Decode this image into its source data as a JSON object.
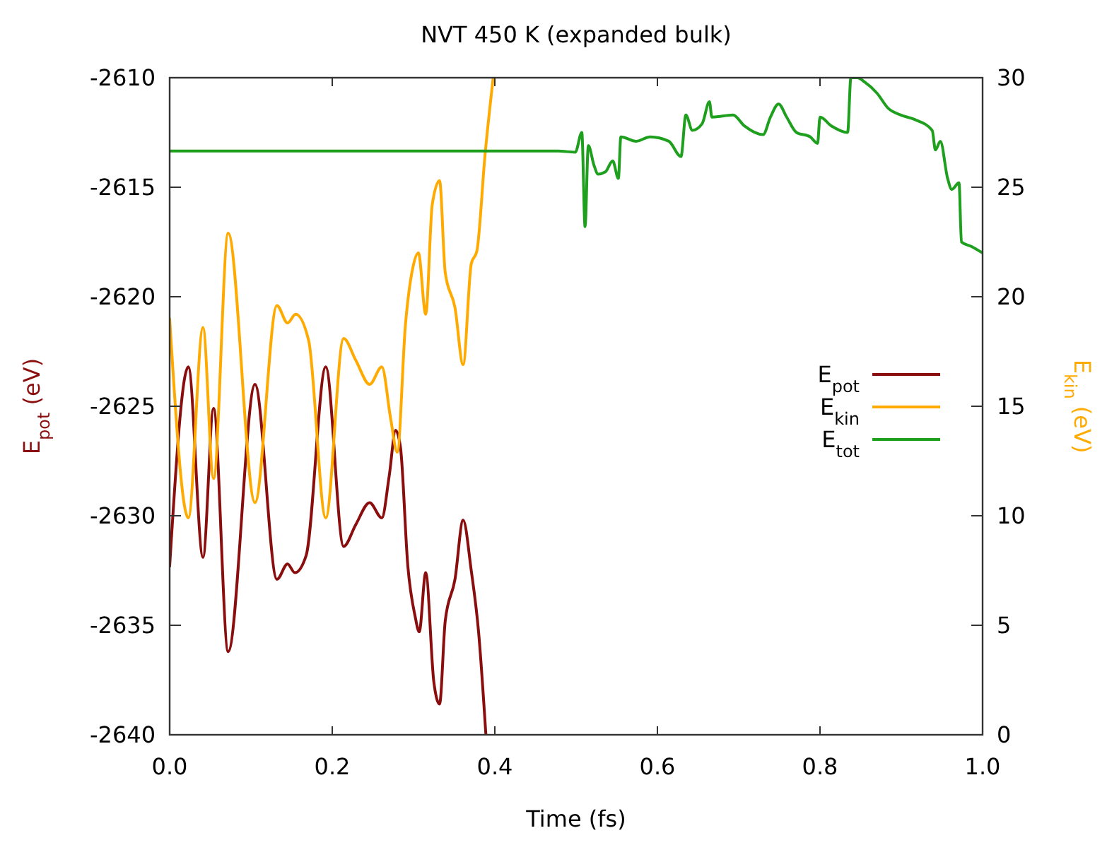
{
  "chart_data": {
    "type": "line",
    "title": "NVT 450 K (expanded bulk)",
    "xlabel": "Time (fs)",
    "ylabel": "E$_{pot}$ (eV)",
    "y2label": "E$_{kin}$ (eV)",
    "xlim": [
      0,
      1
    ],
    "xticks": [
      {
        "value": 0,
        "label": "0.0"
      },
      {
        "value": 0.2,
        "label": "0.2"
      },
      {
        "value": 0.4,
        "label": "0.4"
      },
      {
        "value": 0.6,
        "label": "0.6"
      },
      {
        "value": 0.8,
        "label": "0.8"
      },
      {
        "value": 1,
        "label": "1.0"
      }
    ],
    "ylim": [
      -2640,
      -2610
    ],
    "yticks": [
      -2640,
      -2635,
      -2630,
      -2625,
      -2620,
      -2615,
      -2610
    ],
    "y2lim": [
      0,
      30
    ],
    "y2ticks": [
      0,
      5,
      10,
      15,
      20,
      25,
      30
    ],
    "grid": false,
    "legend": "right",
    "marker": "none",
    "line_style": "solid",
    "series": [
      {
        "name": "E$_{pot}$",
        "color": "#8b0e0e",
        "axis": "y",
        "x": [
          0,
          0.023,
          0.041,
          0.054,
          0.072,
          0.105,
          0.132,
          0.145,
          0.154,
          0.168,
          0.192,
          0.214,
          0.229,
          0.246,
          0.261,
          0.27,
          0.278,
          0.284,
          0.293,
          0.302,
          0.307,
          0.315,
          0.325,
          0.332,
          0.339,
          0.351,
          0.361,
          0.371,
          0.38,
          0.389
        ],
        "values": [
          -2632.3,
          -2623.2,
          -2631.9,
          -2625.1,
          -2636.2,
          -2624,
          -2632.9,
          -2632.2,
          -2632.6,
          -2631.8,
          -2623.2,
          -2631.4,
          -2630.4,
          -2629.4,
          -2630.1,
          -2628.2,
          -2626.1,
          -2626.9,
          -2632.3,
          -2634.6,
          -2635.3,
          -2632.6,
          -2637.6,
          -2638.6,
          -2634.8,
          -2632.9,
          -2630.2,
          -2632.5,
          -2635.3,
          -2640
        ]
      },
      {
        "name": "E$_{kin}$",
        "color": "#ffaa00",
        "axis": "y2",
        "x": [
          0,
          0.023,
          0.041,
          0.054,
          0.072,
          0.105,
          0.132,
          0.145,
          0.155,
          0.171,
          0.192,
          0.214,
          0.229,
          0.246,
          0.261,
          0.272,
          0.28,
          0.29,
          0.299,
          0.306,
          0.315,
          0.323,
          0.332,
          0.339,
          0.351,
          0.361,
          0.371,
          0.378,
          0.388,
          0.398
        ],
        "values": [
          19,
          9.9,
          18.6,
          11.7,
          22.9,
          10.6,
          19.6,
          18.8,
          19.2,
          18,
          9.9,
          18.1,
          17.1,
          16,
          16.8,
          14.4,
          12.9,
          18.7,
          21.3,
          22,
          19.2,
          24.2,
          25.3,
          21.1,
          19.5,
          16.9,
          21.5,
          22.1,
          26.5,
          30
        ]
      },
      {
        "name": "E$_{tot}$",
        "color": "#1ea01e",
        "axis": "y",
        "x": [
          0,
          0.478,
          0.499,
          0.507,
          0.511,
          0.515,
          0.522,
          0.527,
          0.536,
          0.545,
          0.552,
          0.555,
          0.574,
          0.591,
          0.614,
          0.629,
          0.635,
          0.643,
          0.655,
          0.664,
          0.667,
          0.693,
          0.707,
          0.73,
          0.739,
          0.749,
          0.759,
          0.771,
          0.788,
          0.797,
          0.8,
          0.814,
          0.834,
          0.838,
          0.846,
          0.855,
          0.87,
          0.884,
          0.899,
          0.916,
          0.938,
          0.942,
          0.948,
          0.957,
          0.962,
          0.971,
          0.974,
          0.986,
          1
        ],
        "values": [
          -2613.35,
          -2613.35,
          -2613.4,
          -2612.5,
          -2616.8,
          -2613.1,
          -2614,
          -2614.4,
          -2614.3,
          -2613.8,
          -2614.6,
          -2612.7,
          -2612.9,
          -2612.7,
          -2612.9,
          -2613.6,
          -2611.7,
          -2612.4,
          -2612.1,
          -2611.1,
          -2611.8,
          -2611.7,
          -2612.2,
          -2612.6,
          -2611.8,
          -2611.2,
          -2611.8,
          -2612.5,
          -2612.7,
          -2613,
          -2611.8,
          -2612.2,
          -2612.5,
          -2610,
          -2610,
          -2610.2,
          -2610.7,
          -2611.4,
          -2611.7,
          -2611.9,
          -2612.4,
          -2613.3,
          -2612.9,
          -2614.6,
          -2615.1,
          -2614.8,
          -2617.5,
          -2617.7,
          -2618
        ]
      }
    ]
  }
}
